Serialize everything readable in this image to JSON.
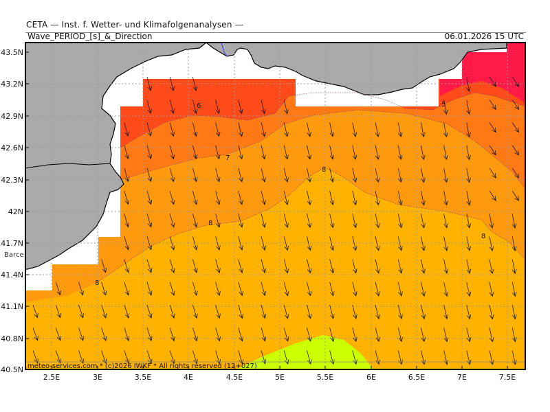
{
  "header": {
    "line1": "CETA — Inst. f. Wetter- und Klimafolgenanalysen —",
    "title": "Wave_PERIOD_[s]_&_Direction",
    "datetime": "06.01.2026 15 UTC"
  },
  "footer": {
    "credit": "meteo-services.com * (c)2026 IWKF * All rights reserved (12+027)"
  },
  "place_label": "Barce",
  "axes": {
    "lat_ticks": [
      "43.5N",
      "43.2N",
      "42.9N",
      "42.6N",
      "42.3N",
      "42N",
      "41.7N",
      "41.4N",
      "41.1N",
      "40.8N",
      "40.5N"
    ],
    "lon_ticks": [
      "2.5E",
      "3E",
      "3.5E",
      "4E",
      "4.5E",
      "5E",
      "5.5E",
      "6E",
      "6.5E",
      "7E",
      "7.5E"
    ]
  },
  "contour_labels": [
    "6",
    "5",
    "7",
    "8",
    "8",
    "8",
    "8"
  ],
  "colors": {
    "land": "#aaaaaa",
    "nodata": "#ffffff",
    "period_5": "#ff1a47",
    "period_6": "#ff4a1a",
    "period_7": "#ff7a14",
    "period_8": "#ff9a0e",
    "period_9": "#ffb300",
    "period_10": "#ccff00",
    "coast": "#000000",
    "border": "#3333ff",
    "arrow": "#1a1a1a"
  }
}
